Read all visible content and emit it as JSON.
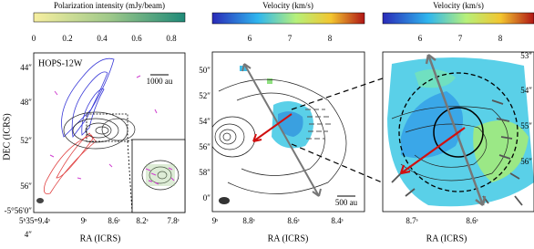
{
  "panel_a": {
    "colorbar_label": "Polarization intensity (mJy/beam)",
    "colorbar_ticks": [
      "0",
      "0.2",
      "0.4",
      "0.6",
      "0.8"
    ],
    "source_label": "HOPS-12W",
    "scale_bar": "1000 au",
    "y_label": "DEC (ICRS)",
    "x_label": "RA (ICRS)",
    "y_ticks": [
      "44″",
      "48″",
      "52″",
      "56″",
      "-5°56′0″",
      "4″"
    ],
    "x_ticks": [
      "5ʰ35ᵐ9.4ˢ",
      "9ˢ",
      "8.6ˢ"
    ],
    "inset_x_ticks": [
      "8.2ˢ",
      "7.8ˢ"
    ]
  },
  "panel_b": {
    "colorbar_label": "Velocity (km/s)",
    "colorbar_ticks": [
      "6",
      "7",
      "8"
    ],
    "scale_bar": "500 au",
    "y_ticks": [
      "50″",
      "52″",
      "54″",
      "56″",
      "58″",
      "0″"
    ],
    "x_label": "RA (ICRS)",
    "x_ticks": [
      "9ˢ",
      "8.8ˢ",
      "8.6ˢ",
      "8.4ˢ"
    ]
  },
  "panel_c": {
    "colorbar_label": "Velocity (km/s)",
    "colorbar_ticks": [
      "6",
      "7",
      "8"
    ],
    "y_ticks": [
      "53″",
      "54″",
      "55″",
      "56″"
    ],
    "x_label": "RA (ICRS)",
    "x_ticks": [
      "8.7ˢ",
      "8.6ˢ"
    ]
  }
}
